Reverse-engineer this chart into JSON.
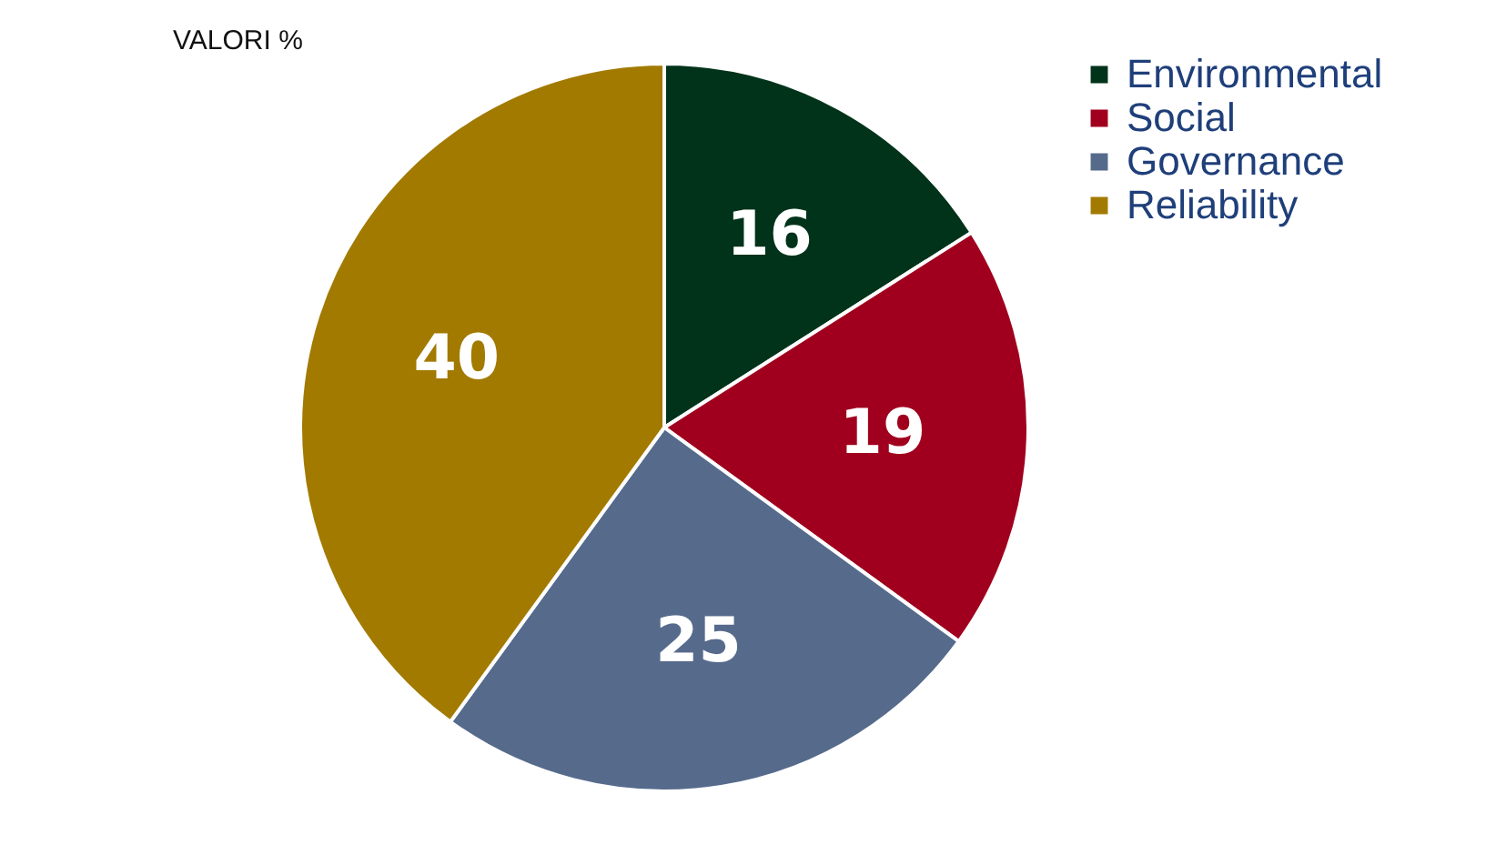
{
  "chart_data": {
    "type": "pie",
    "title": "VALORI %",
    "categories": [
      "Environmental",
      "Social",
      "Governance",
      "Reliability"
    ],
    "values": [
      16,
      19,
      25,
      40
    ],
    "colors": [
      "#00331a",
      "#a0001e",
      "#566a8c",
      "#a27a00"
    ],
    "data_labels": true,
    "legend": "right"
  }
}
